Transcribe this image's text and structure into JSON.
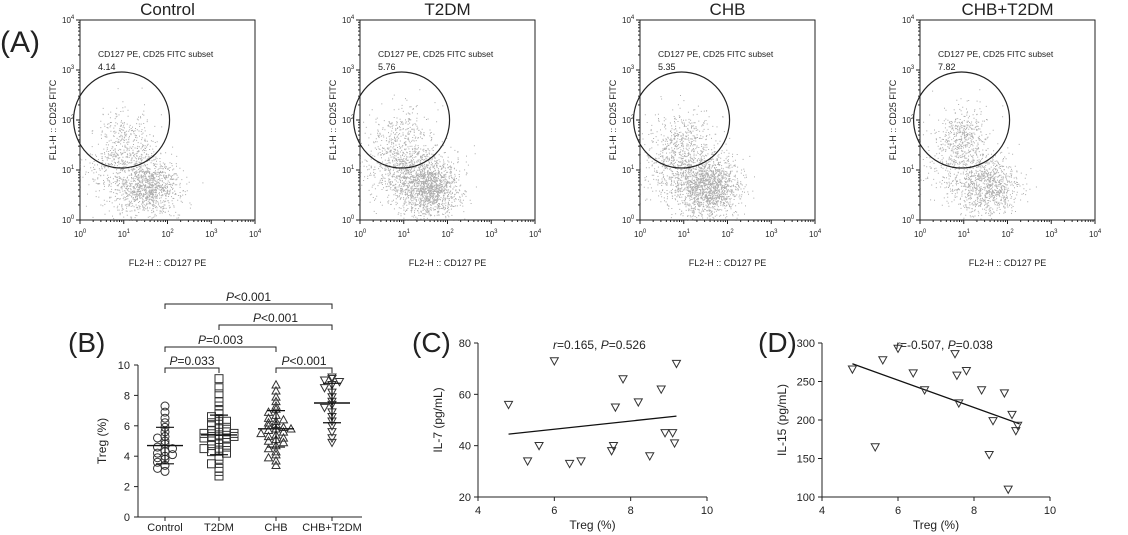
{
  "panel_letters": {
    "a": "(A)",
    "b": "(B)",
    "c": "(C)",
    "d": "(D)"
  },
  "chart_data": [
    {
      "type": "scatter",
      "panel": "(A)",
      "subtype": "flow-cytometry-dot-plots",
      "xlabel": "FL2-H :: CD127 PE",
      "ylabel": "FL1-H :: CD25 FITC",
      "x_scale": "log",
      "y_scale": "log",
      "xlim": [
        1,
        10000
      ],
      "ylim": [
        1,
        10000
      ],
      "tick_base": "10",
      "tick_exponents": [
        "0",
        "1",
        "2",
        "3",
        "4"
      ],
      "gate_label": "CD127 PE, CD25 FITC subset",
      "plots": [
        {
          "title": "Control",
          "gate_value": "4.14",
          "density": "low-medium"
        },
        {
          "title": "T2DM",
          "gate_value": "5.76",
          "density": "medium"
        },
        {
          "title": "CHB",
          "gate_value": "5.35",
          "density": "medium"
        },
        {
          "title": "CHB+T2DM",
          "gate_value": "7.82",
          "density": "high"
        }
      ]
    },
    {
      "type": "scatter",
      "panel": "(B)",
      "ylabel": "Treg (%)",
      "ylim": [
        0,
        10
      ],
      "yticks": [
        "0",
        "2",
        "4",
        "6",
        "8",
        "10"
      ],
      "categories": [
        "Control",
        "T2DM",
        "CHB",
        "CHB+T2DM"
      ],
      "markers": [
        "circle",
        "square",
        "triangle-up",
        "triangle-down"
      ],
      "groups": [
        {
          "name": "Control",
          "mean": 4.7,
          "sd": 1.2,
          "values": [
            7.3,
            6.9,
            6.5,
            6.2,
            5.9,
            5.6,
            5.3,
            5.0,
            4.8,
            4.6,
            4.5,
            4.3,
            4.2,
            4.0,
            3.9,
            3.8,
            3.6,
            3.4,
            3.2,
            3.0,
            4.1,
            5.2
          ]
        },
        {
          "name": "T2DM",
          "mean": 5.4,
          "sd": 1.3,
          "values": [
            9.1,
            8.5,
            8.1,
            7.6,
            7.3,
            7.0,
            6.8,
            6.6,
            6.4,
            6.2,
            6.1,
            6.0,
            5.9,
            5.8,
            5.7,
            5.6,
            5.5,
            5.4,
            5.3,
            5.2,
            5.2,
            5.1,
            5.0,
            4.9,
            4.8,
            4.7,
            4.6,
            4.5,
            4.4,
            4.3,
            4.2,
            4.0,
            3.8,
            3.5,
            3.2,
            3.0,
            2.7,
            5.5,
            5.3,
            6.3
          ]
        },
        {
          "name": "CHB",
          "mean": 5.8,
          "sd": 1.2,
          "values": [
            8.7,
            8.3,
            7.9,
            7.6,
            7.3,
            7.1,
            6.9,
            6.7,
            6.5,
            6.3,
            6.2,
            6.1,
            6.0,
            5.9,
            5.8,
            5.7,
            5.6,
            5.5,
            5.4,
            5.3,
            5.2,
            5.1,
            5.0,
            4.9,
            4.7,
            4.5,
            4.3,
            4.1,
            3.9,
            3.7,
            3.4,
            5.8,
            6.4
          ]
        },
        {
          "name": "CHB+T2DM",
          "mean": 7.5,
          "sd": 1.3,
          "values": [
            9.2,
            9.1,
            9.0,
            8.9,
            8.7,
            8.5,
            8.2,
            7.9,
            7.6,
            7.4,
            7.2,
            6.9,
            6.6,
            6.3,
            6.0,
            5.6,
            5.2,
            4.9
          ]
        }
      ],
      "comparisons": [
        {
          "from": "Control",
          "to": "CHB+T2DM",
          "prefix": "P",
          "text": "<0.001"
        },
        {
          "from": "T2DM",
          "to": "CHB+T2DM",
          "prefix": "P",
          "text": "<0.001"
        },
        {
          "from": "Control",
          "to": "CHB",
          "prefix": "P",
          "text": "=0.003"
        },
        {
          "from": "Control",
          "to": "T2DM",
          "prefix": "P",
          "text": "=0.033"
        },
        {
          "from": "CHB",
          "to": "CHB+T2DM",
          "prefix": "P",
          "text": "<0.001"
        }
      ]
    },
    {
      "type": "scatter",
      "panel": "(C)",
      "xlabel": "Treg (%)",
      "ylabel": "IL-7 (pg/mL)",
      "xlim": [
        4,
        10
      ],
      "ylim": [
        20,
        80
      ],
      "xticks": [
        "4",
        "6",
        "8",
        "10"
      ],
      "yticks": [
        "20",
        "40",
        "60",
        "80"
      ],
      "marker": "triangle-down",
      "stat_r": "r",
      "stat_text": "=0.165, ",
      "stat_p": "P",
      "stat_pval": "=0.526",
      "points": [
        {
          "x": 4.8,
          "y": 56
        },
        {
          "x": 5.3,
          "y": 34
        },
        {
          "x": 5.6,
          "y": 40
        },
        {
          "x": 6.0,
          "y": 73
        },
        {
          "x": 6.4,
          "y": 33
        },
        {
          "x": 6.7,
          "y": 34
        },
        {
          "x": 7.5,
          "y": 38
        },
        {
          "x": 7.55,
          "y": 40
        },
        {
          "x": 7.6,
          "y": 55
        },
        {
          "x": 7.8,
          "y": 66
        },
        {
          "x": 8.2,
          "y": 57
        },
        {
          "x": 8.5,
          "y": 36
        },
        {
          "x": 8.8,
          "y": 62
        },
        {
          "x": 8.9,
          "y": 45
        },
        {
          "x": 9.1,
          "y": 45
        },
        {
          "x": 9.15,
          "y": 41
        },
        {
          "x": 9.2,
          "y": 72
        }
      ],
      "fit_line": [
        {
          "x": 4.8,
          "y": 44.5
        },
        {
          "x": 9.2,
          "y": 51.5
        }
      ]
    },
    {
      "type": "scatter",
      "panel": "(D)",
      "xlabel": "Treg (%)",
      "ylabel": "IL-15 (pg/mL)",
      "xlim": [
        4,
        10
      ],
      "ylim": [
        100,
        300
      ],
      "xticks": [
        "4",
        "6",
        "8",
        "10"
      ],
      "yticks": [
        "100",
        "150",
        "200",
        "250",
        "300"
      ],
      "marker": "triangle-down",
      "stat_r": "r",
      "stat_text": "=-0.507, ",
      "stat_p": "P",
      "stat_pval": "=0.038",
      "points": [
        {
          "x": 4.8,
          "y": 266
        },
        {
          "x": 5.4,
          "y": 165
        },
        {
          "x": 5.6,
          "y": 278
        },
        {
          "x": 6.0,
          "y": 293
        },
        {
          "x": 6.4,
          "y": 261
        },
        {
          "x": 6.7,
          "y": 239
        },
        {
          "x": 7.5,
          "y": 286
        },
        {
          "x": 7.55,
          "y": 258
        },
        {
          "x": 7.6,
          "y": 222
        },
        {
          "x": 7.8,
          "y": 264
        },
        {
          "x": 8.2,
          "y": 239
        },
        {
          "x": 8.4,
          "y": 155
        },
        {
          "x": 8.5,
          "y": 199
        },
        {
          "x": 8.8,
          "y": 235
        },
        {
          "x": 8.9,
          "y": 110
        },
        {
          "x": 9.0,
          "y": 207
        },
        {
          "x": 9.1,
          "y": 186
        },
        {
          "x": 9.15,
          "y": 193
        }
      ],
      "fit_line": [
        {
          "x": 4.8,
          "y": 273
        },
        {
          "x": 9.2,
          "y": 195
        }
      ]
    }
  ]
}
